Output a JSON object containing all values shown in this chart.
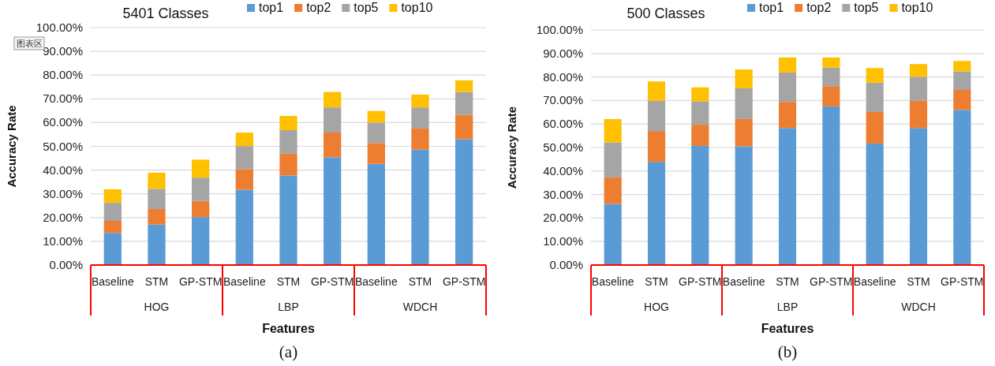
{
  "chart_data": [
    {
      "type": "bar",
      "stacked": true,
      "title": "5401 Classes",
      "xlabel": "Features",
      "ylabel": "Accuracy Rate",
      "categories": [
        "Baseline",
        "STM",
        "GP-STM",
        "Baseline",
        "STM",
        "GP-STM",
        "Baseline",
        "STM",
        "GP-STM"
      ],
      "series": [
        {
          "name": "top1",
          "color": "#5b9bd5",
          "values": [
            13.5,
            17.1,
            20.2,
            31.7,
            37.7,
            45.4,
            42.6,
            48.6,
            53.0
          ]
        },
        {
          "name": "top2",
          "color": "#ed7d31",
          "values": [
            5.1,
            6.5,
            6.8,
            8.7,
            9.2,
            10.4,
            8.8,
            8.9,
            10.3
          ]
        },
        {
          "name": "top5",
          "color": "#a5a5a5",
          "values": [
            7.6,
            8.5,
            9.8,
            9.7,
            9.9,
            10.6,
            8.6,
            8.9,
            9.6
          ]
        },
        {
          "name": "top10",
          "color": "#ffc000",
          "values": [
            5.7,
            6.8,
            7.6,
            5.7,
            6.0,
            6.5,
            4.9,
            5.4,
            4.9
          ]
        }
      ],
      "ylim": [
        0,
        100
      ],
      "yticks": [
        {
          "value": 0,
          "label": "0.00%"
        },
        {
          "value": 10,
          "label": "10.00%"
        },
        {
          "value": 20,
          "label": "20.00%"
        },
        {
          "value": 30,
          "label": "30.00%"
        },
        {
          "value": 40,
          "label": "40.00%"
        },
        {
          "value": 50,
          "label": "50.00%"
        },
        {
          "value": 60,
          "label": "60.00%"
        },
        {
          "value": 70,
          "label": "70.00%"
        },
        {
          "value": 80,
          "label": "80.00%"
        },
        {
          "value": 90,
          "label": "90.00%"
        },
        {
          "value": 100,
          "label": "100.00%"
        }
      ],
      "grid": "y",
      "legend": "top",
      "annotations": [
        "HOG",
        "LBP",
        "WDCH",
        "(a)",
        "图表区"
      ]
    },
    {
      "type": "bar",
      "stacked": true,
      "title": "500 Classes",
      "xlabel": "Features",
      "ylabel": "Accuracy Rate",
      "categories": [
        "Baseline",
        "STM",
        "GP-STM",
        "Baseline",
        "STM",
        "GP-STM",
        "Baseline",
        "STM",
        "GP-STM"
      ],
      "series": [
        {
          "name": "top1",
          "color": "#5b9bd5",
          "values": [
            26.0,
            43.9,
            50.7,
            50.5,
            58.3,
            67.5,
            51.7,
            58.3,
            66.0
          ]
        },
        {
          "name": "top2",
          "color": "#ed7d31",
          "values": [
            11.3,
            13.1,
            9.0,
            11.6,
            11.1,
            8.6,
            13.4,
            11.6,
            8.5
          ]
        },
        {
          "name": "top5",
          "color": "#a5a5a5",
          "values": [
            14.9,
            12.9,
            10.0,
            13.1,
            12.5,
            7.9,
            12.5,
            10.2,
            7.9
          ]
        },
        {
          "name": "top10",
          "color": "#ffc000",
          "values": [
            9.9,
            8.2,
            5.9,
            8.0,
            6.4,
            4.3,
            6.2,
            5.4,
            4.4
          ]
        }
      ],
      "ylim": [
        0,
        100
      ],
      "yticks": [
        {
          "value": 0,
          "label": "0.00%"
        },
        {
          "value": 10,
          "label": "10.00%"
        },
        {
          "value": 20,
          "label": "20.00%"
        },
        {
          "value": 30,
          "label": "30.00%"
        },
        {
          "value": 40,
          "label": "40.00%"
        },
        {
          "value": 50,
          "label": "50.00%"
        },
        {
          "value": 60,
          "label": "60.00%"
        },
        {
          "value": 70,
          "label": "70.00%"
        },
        {
          "value": 80,
          "label": "80.00%"
        },
        {
          "value": 90,
          "label": "90.00%"
        },
        {
          "value": 100,
          "label": "100.00%"
        }
      ],
      "grid": "y",
      "legend": "top",
      "annotations": [
        "HOG",
        "LBP",
        "WDCH",
        "(b)"
      ]
    }
  ]
}
